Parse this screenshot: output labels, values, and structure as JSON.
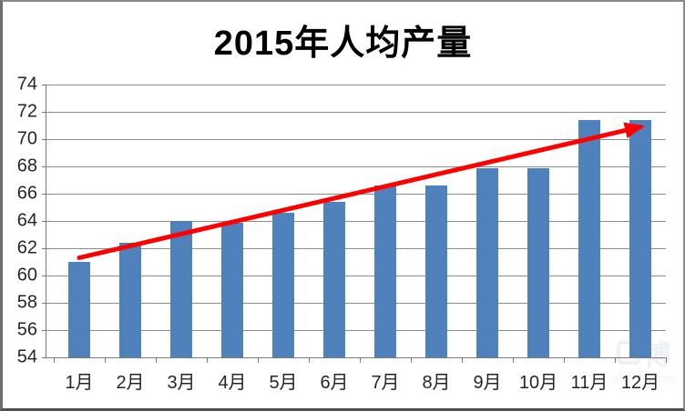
{
  "title": "2015年人均产量",
  "chart_data": {
    "type": "bar",
    "title": "2015年人均产量",
    "categories": [
      "1月",
      "2月",
      "3月",
      "4月",
      "5月",
      "6月",
      "7月",
      "8月",
      "9月",
      "10月",
      "11月",
      "12月"
    ],
    "values": [
      61.0,
      62.4,
      64.0,
      63.9,
      64.6,
      65.4,
      66.6,
      66.6,
      67.9,
      67.9,
      71.4,
      71.4
    ],
    "ylim": [
      54,
      74
    ],
    "y_ticks": [
      54,
      56,
      58,
      60,
      62,
      64,
      66,
      68,
      70,
      72,
      74
    ],
    "xlabel": "",
    "ylabel": "",
    "grid": true,
    "legend_position": "none",
    "bar_color": "#4F81BD",
    "gridline_color": "#8C8C8C",
    "axis_text_color": "#262626",
    "title_color": "#000000",
    "trend_arrow": {
      "color": "#FF0000",
      "stroke_width": 5,
      "from": {
        "month_index": 1,
        "value": 61.3
      },
      "to": {
        "month_index": 12,
        "value": 70.9
      }
    }
  },
  "watermark": {
    "chars": "博",
    "url": "www.bg.com"
  }
}
